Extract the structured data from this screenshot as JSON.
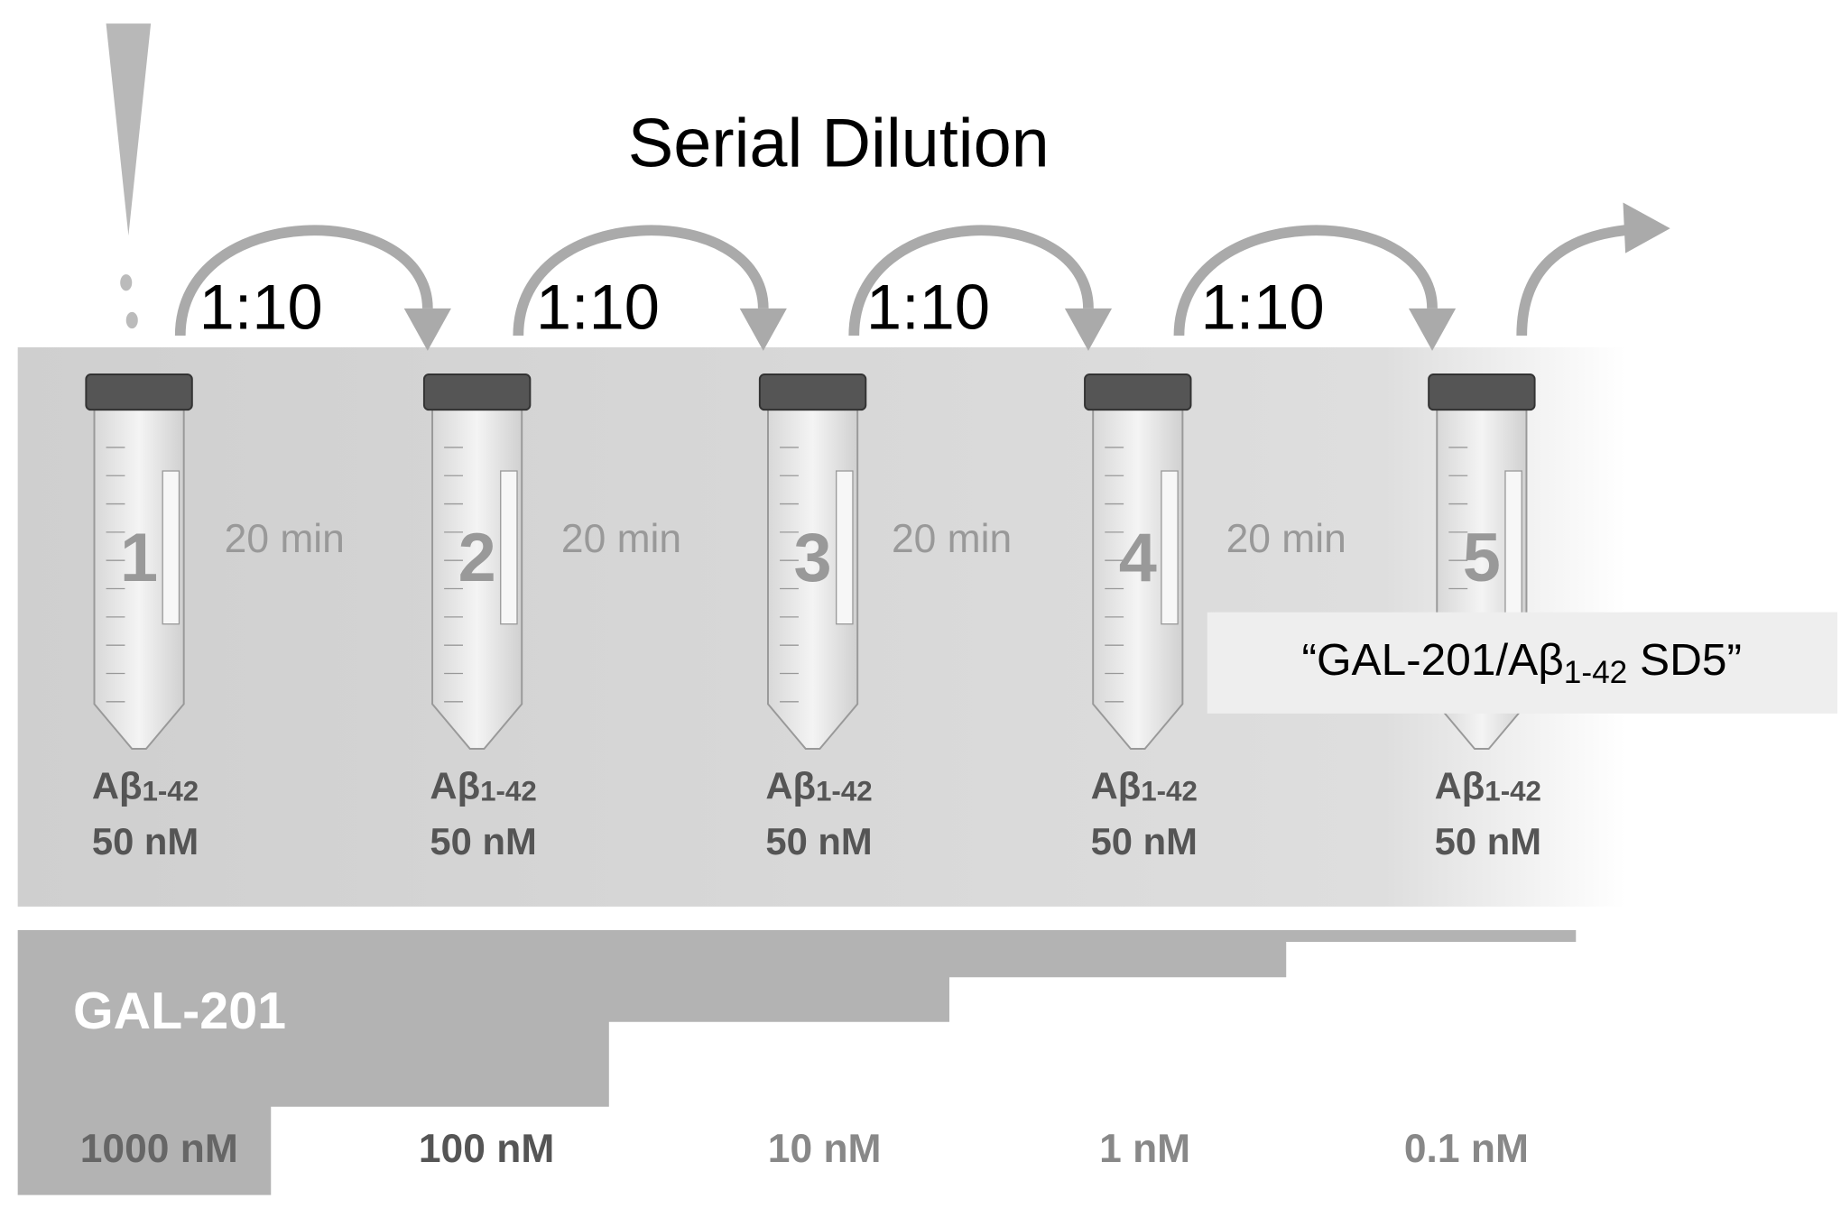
{
  "title": "Serial Dilution",
  "steps": [
    {
      "ratio": "1:10",
      "time": "20 min"
    },
    {
      "ratio": "1:10",
      "time": "20 min"
    },
    {
      "ratio": "1:10",
      "time": "20 min"
    },
    {
      "ratio": "1:10",
      "time": "20 min"
    }
  ],
  "tubes": [
    {
      "number": "1",
      "analyte": "Aβ",
      "subscript": "1-42",
      "concentration": "50 nM"
    },
    {
      "number": "2",
      "analyte": "Aβ",
      "subscript": "1-42",
      "concentration": "50 nM"
    },
    {
      "number": "3",
      "analyte": "Aβ",
      "subscript": "1-42",
      "concentration": "50 nM"
    },
    {
      "number": "4",
      "analyte": "Aβ",
      "subscript": "1-42",
      "concentration": "50 nM"
    },
    {
      "number": "5",
      "analyte": "Aβ",
      "subscript": "1-42",
      "concentration": "50 nM"
    }
  ],
  "final_label": {
    "prefix": "“GAL-201/Aβ",
    "subscript": "1-42",
    "suffix": " SD5”"
  },
  "compound": "GAL-201",
  "compound_concentrations": [
    "1000 nM",
    "100 nM",
    "10 nM",
    "1 nM",
    "0.1 nM"
  ]
}
